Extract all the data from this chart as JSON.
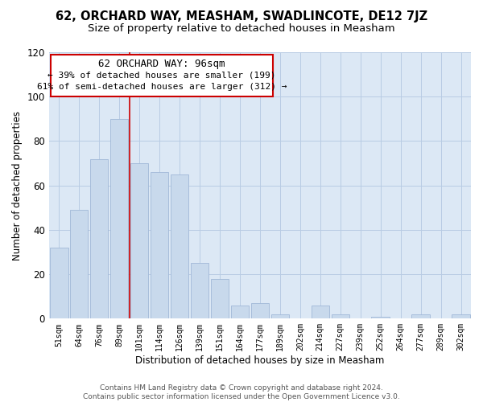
{
  "title": "62, ORCHARD WAY, MEASHAM, SWADLINCOTE, DE12 7JZ",
  "subtitle": "Size of property relative to detached houses in Measham",
  "xlabel": "Distribution of detached houses by size in Measham",
  "ylabel": "Number of detached properties",
  "categories": [
    "51sqm",
    "64sqm",
    "76sqm",
    "89sqm",
    "101sqm",
    "114sqm",
    "126sqm",
    "139sqm",
    "151sqm",
    "164sqm",
    "177sqm",
    "189sqm",
    "202sqm",
    "214sqm",
    "227sqm",
    "239sqm",
    "252sqm",
    "264sqm",
    "277sqm",
    "289sqm",
    "302sqm"
  ],
  "values": [
    32,
    49,
    72,
    90,
    70,
    66,
    65,
    25,
    18,
    6,
    7,
    2,
    0,
    6,
    2,
    0,
    1,
    0,
    2,
    0,
    2
  ],
  "bar_color": "#c8d9ec",
  "bar_edgecolor": "#a0b8d8",
  "marker_bar_index": 4,
  "marker_line_color": "#cc0000",
  "ylim": [
    0,
    120
  ],
  "yticks": [
    0,
    20,
    40,
    60,
    80,
    100,
    120
  ],
  "ann_text_line1": "62 ORCHARD WAY: 96sqm",
  "ann_text_line2": "← 39% of detached houses are smaller (199)",
  "ann_text_line3": "61% of semi-detached houses are larger (312) →",
  "footer_line1": "Contains HM Land Registry data © Crown copyright and database right 2024.",
  "footer_line2": "Contains public sector information licensed under the Open Government Licence v3.0.",
  "bg_color": "#ffffff",
  "plot_bg_color": "#dce8f5",
  "grid_color": "#b8cce4",
  "title_fontsize": 10.5,
  "subtitle_fontsize": 9.5,
  "axis_label_fontsize": 8.5,
  "tick_fontsize": 7,
  "footer_fontsize": 6.5
}
